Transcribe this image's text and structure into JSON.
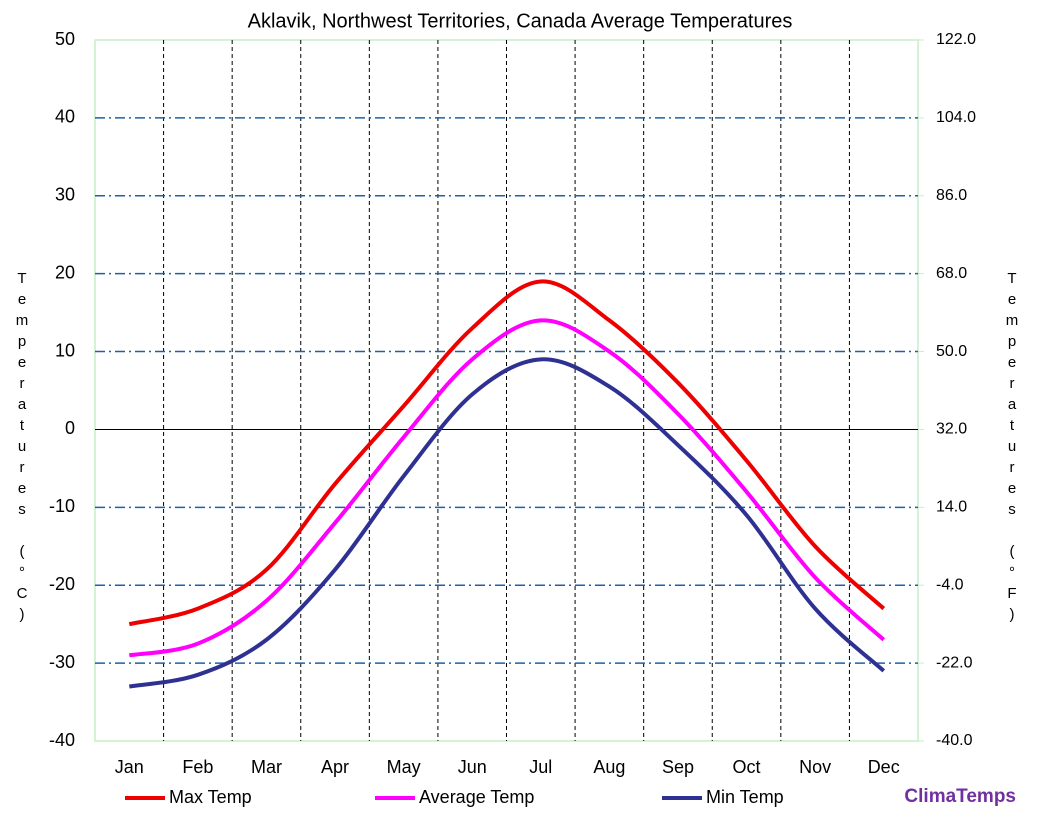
{
  "chart_data": {
    "type": "line",
    "title": "Aklavik, Northwest Territories, Canada Average Temperatures",
    "y_label": "Temperatures (°C)",
    "y2_label": "Temperatures (°F)",
    "watermark": "ClimaTemps",
    "categories": [
      "Jan",
      "Feb",
      "Mar",
      "Apr",
      "May",
      "Jun",
      "Jul",
      "Aug",
      "Sep",
      "Oct",
      "Nov",
      "Dec"
    ],
    "series": [
      {
        "name": "Max Temp",
        "color": "#ee0000",
        "values": [
          -25,
          -23,
          -18,
          -7,
          3,
          13,
          19,
          14,
          6,
          -4,
          -15,
          -23
        ]
      },
      {
        "name": "Average Temp",
        "color": "#ff00ff",
        "values": [
          -29,
          -27.5,
          -22,
          -12,
          -1,
          9,
          14,
          10,
          2,
          -8,
          -19,
          -27
        ]
      },
      {
        "name": "Min Temp",
        "color": "#2e3192",
        "values": [
          -33,
          -31.5,
          -27,
          -18,
          -6,
          4.5,
          9,
          5.5,
          -2,
          -11,
          -23,
          -31
        ]
      }
    ],
    "ylim": [
      -40,
      50
    ],
    "yticks": [
      -40,
      -30,
      -20,
      -10,
      0,
      10,
      20,
      30,
      40,
      50
    ],
    "y2lim": [
      -40,
      122
    ],
    "y2ticks": [
      {
        "value": -40,
        "label": "-40.0"
      },
      {
        "value": -22,
        "label": "-22.0"
      },
      {
        "value": -4,
        "label": "-4.0"
      },
      {
        "value": 14,
        "label": "14.0"
      },
      {
        "value": 32,
        "label": "32.0"
      },
      {
        "value": 50,
        "label": "50.0"
      },
      {
        "value": 68,
        "label": "68.0"
      },
      {
        "value": 86,
        "label": "86.0"
      },
      {
        "value": 104,
        "label": "104.0"
      },
      {
        "value": 122,
        "label": "122.0"
      }
    ],
    "grid": true
  }
}
